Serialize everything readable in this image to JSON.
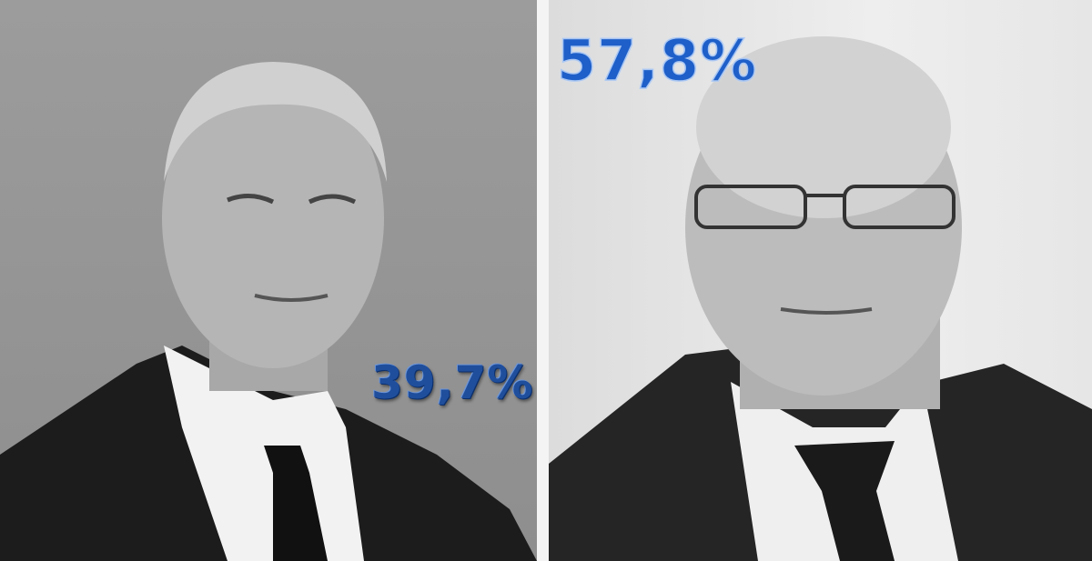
{
  "left_candidate": {
    "result": "39,7%",
    "text_color": "#1f4e9c"
  },
  "right_candidate": {
    "result": "57,8%",
    "text_color": "#1e5fc9"
  }
}
